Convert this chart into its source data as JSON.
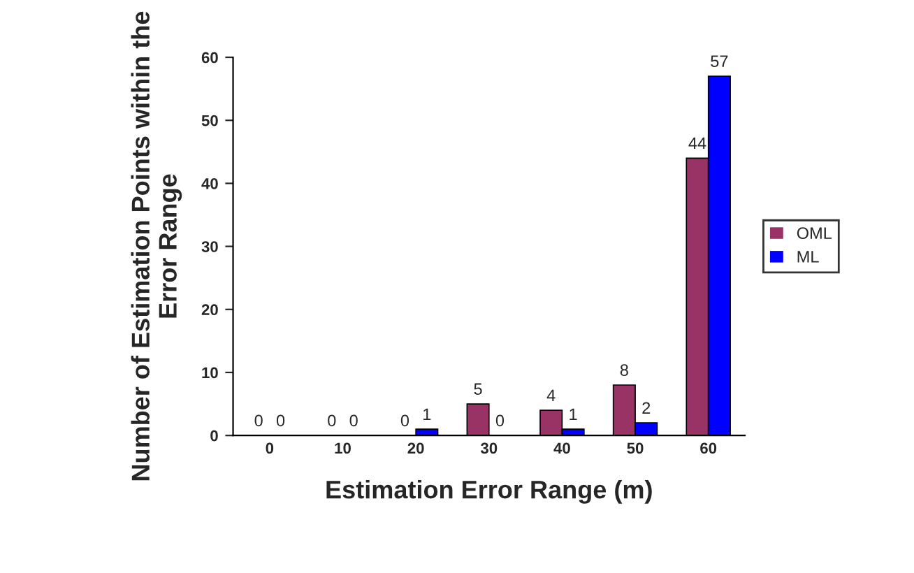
{
  "chart_data": {
    "type": "bar",
    "xlabel": "Estimation Error Range (m)",
    "ylabel": "Number of Estimation Points within the Error Range",
    "categories": [
      "0",
      "10",
      "20",
      "30",
      "40",
      "50",
      "60"
    ],
    "series": [
      {
        "name": "OML",
        "color": "#993366",
        "values": [
          0,
          0,
          0,
          5,
          4,
          8,
          44
        ]
      },
      {
        "name": "ML",
        "color": "#0000ff",
        "values": [
          0,
          0,
          1,
          0,
          1,
          2,
          57
        ]
      }
    ],
    "ylim": [
      0,
      60
    ],
    "yticks": [
      0,
      10,
      20,
      30,
      40,
      50,
      60
    ],
    "data_labels": true,
    "legend": "right",
    "grid": false
  }
}
